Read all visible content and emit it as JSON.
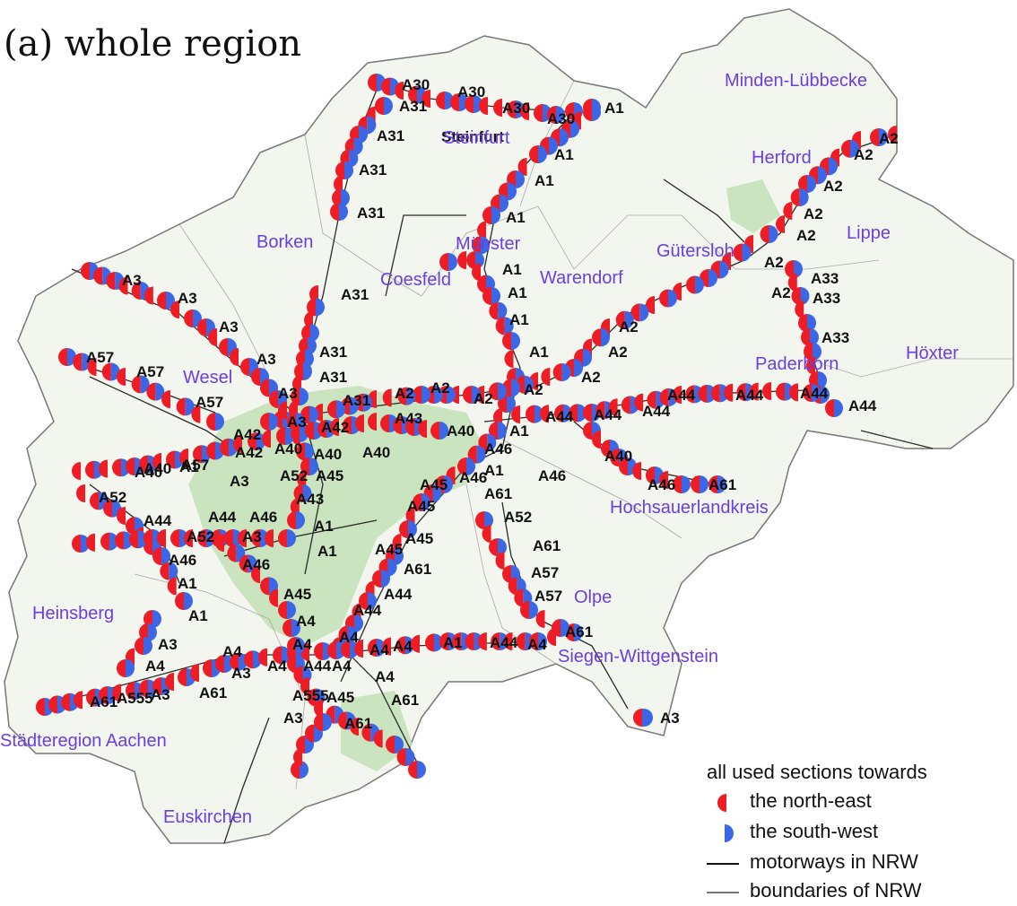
{
  "title": "(a) whole region",
  "colors": {
    "north_east": "#ee1c25",
    "south_west": "#3b66e6",
    "region_label": "#6a3fe0",
    "motorway": "#2a2a2a",
    "boundary": "#777777",
    "land": "#f2f6ee",
    "urban": "#bfe0b4"
  },
  "legend": {
    "header": "all used sections towards",
    "items": [
      {
        "label": "the north-east",
        "icon": "half-circle-red"
      },
      {
        "label": "the south-west",
        "icon": "half-circle-blue"
      },
      {
        "label": "motorways in NRW",
        "icon": "black-line"
      },
      {
        "label": "boundaries of NRW",
        "icon": "grey-line"
      }
    ]
  },
  "regions": [
    "Minden-Lübbecke",
    "Steinfurt",
    "Herford",
    "Lippe",
    "Borken",
    "Münster",
    "Coesfeld",
    "Warendorf",
    "Gütersloh",
    "Paderborn",
    "Höxter",
    "Wesel",
    "Hochsauerlandkreis",
    "Olpe",
    "Heinsberg",
    "Siegen-Wittgenstein",
    "Städteregion Aachen",
    "Euskirchen"
  ],
  "motorway_labels": [
    "A30",
    "A30",
    "A30",
    "A30",
    "A31",
    "A1",
    "A31",
    "Steinfurt",
    "A1",
    "A2",
    "A2",
    "A31",
    "A1",
    "A2",
    "A31",
    "A1",
    "A2",
    "A2",
    "A3",
    "A1",
    "A2",
    "A33",
    "A3",
    "A31",
    "A1",
    "A2",
    "A33",
    "A3",
    "A1",
    "A2",
    "A33",
    "A57",
    "A57",
    "A31",
    "A1",
    "A2",
    "A3",
    "A31",
    "A2",
    "A2",
    "A44",
    "A44",
    "A44",
    "A3",
    "A31",
    "A2",
    "A2",
    "A2",
    "A57",
    "A42",
    "A3",
    "A42",
    "A43",
    "A40",
    "A1",
    "A44",
    "A44",
    "A44",
    "A44",
    "A42",
    "A40",
    "A40",
    "A40",
    "A40",
    "A1",
    "A46",
    "A40",
    "A40",
    "A57",
    "A3",
    "A52",
    "A45",
    "A1",
    "A46",
    "A46",
    "A46",
    "A61",
    "A52",
    "A43",
    "A45",
    "A61",
    "A44",
    "A44",
    "A46",
    "A45",
    "A52",
    "A52",
    "A3",
    "A1",
    "A45",
    "A61",
    "A46",
    "A46",
    "A1",
    "A45",
    "A61",
    "A57",
    "A1",
    "A45",
    "A44",
    "A57",
    "A1",
    "A4",
    "A44",
    "A61",
    "A3",
    "A4",
    "A4",
    "A4",
    "A4",
    "A1",
    "A44",
    "A4",
    "A4",
    "A4",
    "A3",
    "A4",
    "A44",
    "A4",
    "A4",
    "A61",
    "A555",
    "A3",
    "A61",
    "A555",
    "A45",
    "A61",
    "A3",
    "A61",
    "A3"
  ]
}
